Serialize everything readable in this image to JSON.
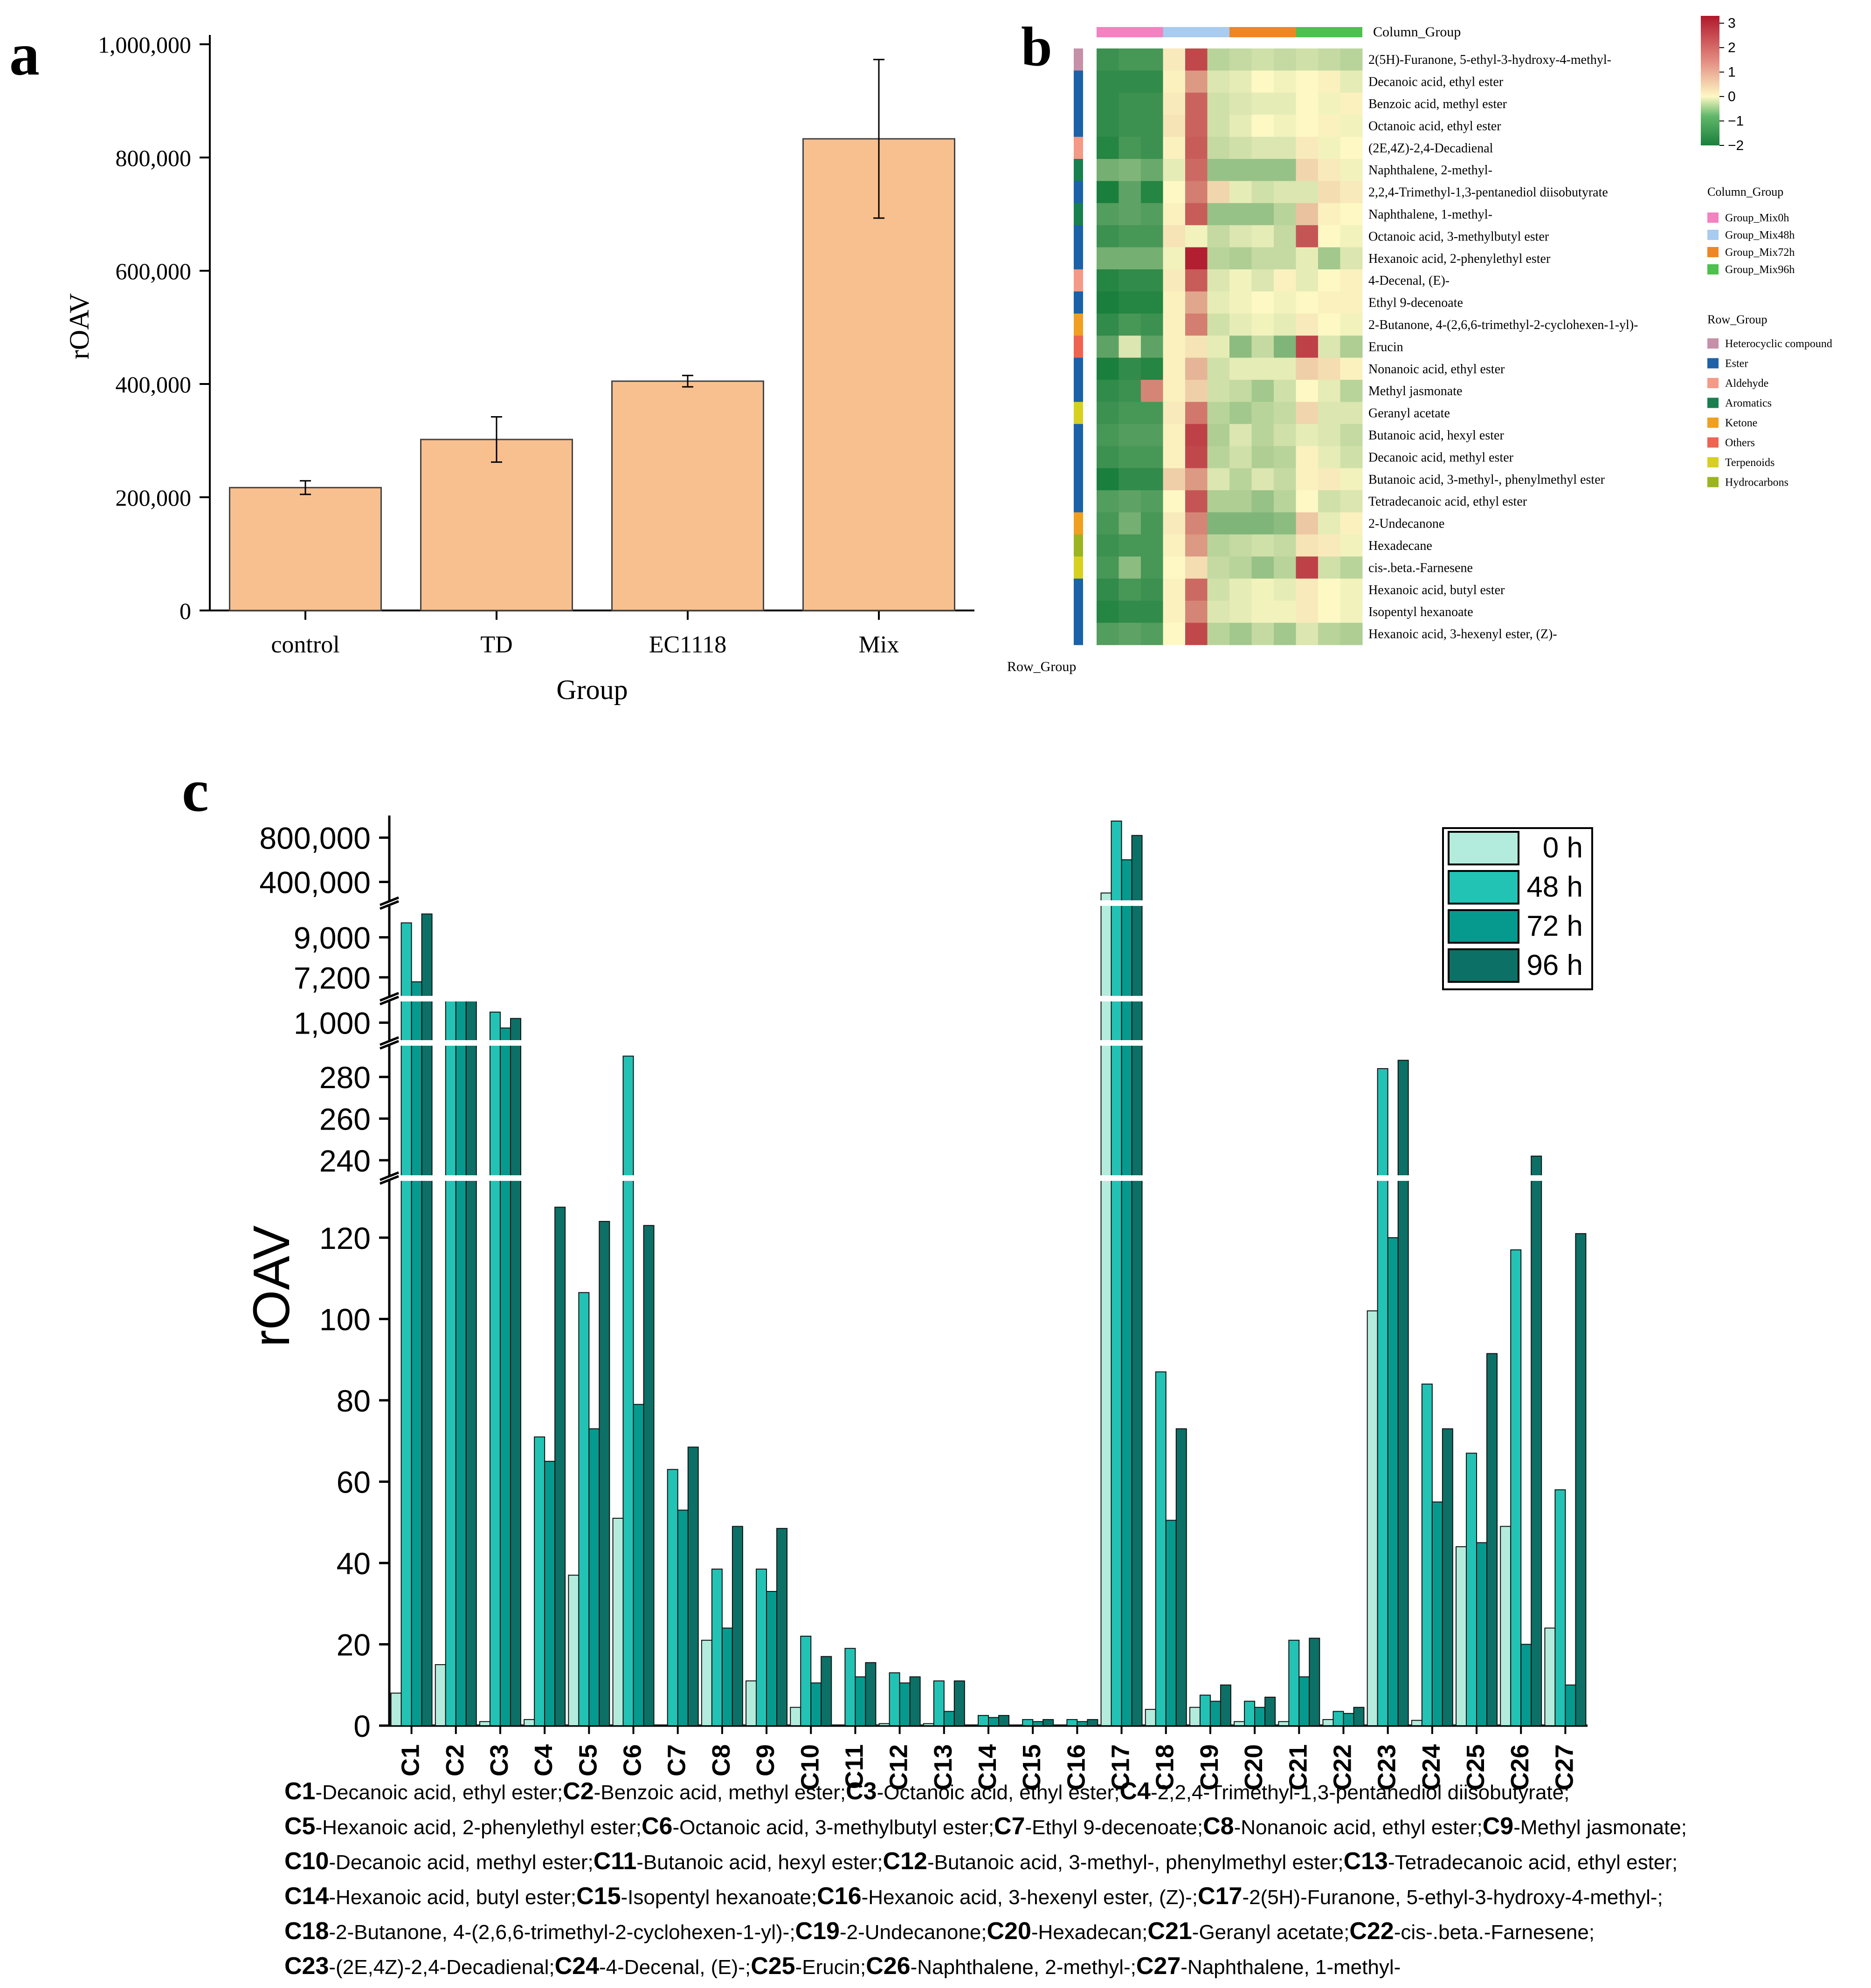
{
  "colors": {
    "bar_a": "#f9c08f",
    "c_0h": "#b3ecdc",
    "c_48h": "#22c3b5",
    "c_72h": "#069a8e",
    "c_96h": "#0c7066",
    "hm_low": "#1a7f3c",
    "hm_mid": "#fdf8c4",
    "hm_high": "#b0182b"
  },
  "chart_data": [
    {
      "panel": "a",
      "type": "bar",
      "xlabel": "Group",
      "ylabel": "rOAV",
      "categories": [
        "control",
        "TD",
        "EC1118",
        "Mix"
      ],
      "values": [
        217000,
        302000,
        405000,
        833000
      ],
      "errors": [
        12000,
        40000,
        10000,
        140000
      ],
      "ylim": [
        0,
        1000000
      ],
      "yticks": [
        0,
        200000,
        400000,
        600000,
        800000,
        1000000
      ],
      "ytick_labels": [
        "0",
        "200,000",
        "400,000",
        "600,000",
        "800,000",
        "1,000,000"
      ]
    },
    {
      "panel": "b",
      "type": "heatmap",
      "column_group_title": "Column_Group",
      "row_group_title": "Row_Group",
      "columns": [
        "Group_Mix0h",
        "Group_Mix0h",
        "Group_Mix0h",
        "Group_Mix48h",
        "Group_Mix48h",
        "Group_Mix48h",
        "Group_Mix72h",
        "Group_Mix72h",
        "Group_Mix72h",
        "Group_Mix96h",
        "Group_Mix96h",
        "Group_Mix96h"
      ],
      "column_groups": [
        {
          "name": "Group_Mix0h",
          "color": "#f282c0"
        },
        {
          "name": "Group_Mix48h",
          "color": "#a8cbf0"
        },
        {
          "name": "Group_Mix72h",
          "color": "#ee8626"
        },
        {
          "name": "Group_Mix96h",
          "color": "#4dc04d"
        }
      ],
      "row_group_legend": [
        {
          "name": "Heterocyclic compound",
          "color": "#c690a8"
        },
        {
          "name": "Ester",
          "color": "#1b62a8"
        },
        {
          "name": "Aldehyde",
          "color": "#f49a86"
        },
        {
          "name": "Aromatics",
          "color": "#17804e"
        },
        {
          "name": "Ketone",
          "color": "#f0a020"
        },
        {
          "name": "Others",
          "color": "#ee6450"
        },
        {
          "name": "Terpenoids",
          "color": "#d8d020"
        },
        {
          "name": "Hydrocarbons",
          "color": "#9cb420"
        }
      ],
      "colorbar_ticks": [
        "3",
        "2",
        "1",
        "0",
        "−1",
        "−2"
      ],
      "colorbar_range": [
        -2,
        3.3
      ],
      "rows": [
        {
          "name": "2(5H)-Furanone, 5-ethyl-3-hydroxy-4-methyl-",
          "group": "Heterocyclic compound",
          "values": [
            -1.7,
            -1.6,
            -1.6,
            0.2,
            2.6,
            -0.6,
            -0.5,
            -0.4,
            -0.5,
            -0.4,
            -0.5,
            -0.6
          ]
        },
        {
          "name": "Decanoic acid, ethyl ester",
          "group": "Ester",
          "values": [
            -1.8,
            -1.8,
            -1.8,
            0.1,
            1.4,
            -0.3,
            -0.2,
            0,
            -0.1,
            0,
            0.1,
            -0.2
          ]
        },
        {
          "name": "Benzoic acid, methyl ester",
          "group": "Ester",
          "values": [
            -1.8,
            -1.7,
            -1.7,
            0.2,
            2.2,
            -0.4,
            -0.3,
            -0.2,
            -0.2,
            0,
            -0.1,
            0.1
          ]
        },
        {
          "name": "Octanoic acid, ethyl ester",
          "group": "Ester",
          "values": [
            -1.8,
            -1.7,
            -1.7,
            0.3,
            2.2,
            -0.4,
            -0.2,
            0,
            -0.1,
            0,
            0.1,
            -0.1
          ]
        },
        {
          "name": "(2E,4Z)-2,4-Decadienal",
          "group": "Aldehyde",
          "values": [
            -1.9,
            -1.6,
            -1.7,
            0.1,
            2.3,
            -0.5,
            -0.4,
            -0.3,
            -0.3,
            0.2,
            -0.1,
            0
          ]
        },
        {
          "name": "Naphthalene, 2-methyl-",
          "group": "Aromatics",
          "values": [
            -1.2,
            -1.1,
            -1.3,
            -0.2,
            2.1,
            -0.9,
            -0.9,
            -0.9,
            -0.9,
            0.5,
            0.2,
            -0.1
          ]
        },
        {
          "name": "2,2,4-Trimethyl-1,3-pentanediol diisobutyrate",
          "group": "Ester",
          "values": [
            -2,
            -1.4,
            -1.9,
            0,
            1.8,
            0.5,
            -0.2,
            -0.4,
            -0.3,
            -0.3,
            0.4,
            0.2
          ]
        },
        {
          "name": "Naphthalene, 1-methyl-",
          "group": "Aromatics",
          "values": [
            -1.5,
            -1.4,
            -1.5,
            0.1,
            2.3,
            -0.9,
            -0.9,
            -0.9,
            -0.6,
            0.8,
            0.1,
            0
          ]
        },
        {
          "name": "Octanoic acid, 3-methylbutyl ester",
          "group": "Ester",
          "values": [
            -1.7,
            -1.6,
            -1.6,
            0.3,
            -0.1,
            -0.5,
            -0.3,
            -0.2,
            -0.5,
            2.4,
            0,
            -0.1
          ]
        },
        {
          "name": "Hexanoic acid, 2-phenylethyl ester",
          "group": "Ester",
          "values": [
            -1.2,
            -1.2,
            -1.2,
            -0.1,
            3.2,
            -0.6,
            -0.7,
            -0.5,
            -0.5,
            -0.2,
            -0.8,
            -0.3
          ]
        },
        {
          "name": "4-Decenal, (E)-",
          "group": "Aldehyde",
          "values": [
            -1.9,
            -1.8,
            -1.8,
            0.2,
            2.3,
            -0.3,
            -0.1,
            -0.3,
            0.1,
            -0.2,
            0,
            0.1
          ]
        },
        {
          "name": "Ethyl 9-decenoate",
          "group": "Ester",
          "values": [
            -2,
            -1.9,
            -1.9,
            0.1,
            1.2,
            -0.2,
            -0.1,
            0,
            -0.1,
            0,
            0.1,
            0.1
          ]
        },
        {
          "name": "2-Butanone, 4-(2,6,6-trimethyl-2-cyclohexen-1-yl)-",
          "group": "Ketone",
          "values": [
            -1.8,
            -1.6,
            -1.7,
            0.1,
            1.8,
            -0.4,
            -0.2,
            -0.1,
            -0.2,
            0.2,
            0,
            -0.1
          ]
        },
        {
          "name": "Erucin",
          "group": "Others",
          "values": [
            -1.4,
            -0.3,
            -1.4,
            0.1,
            0.3,
            -0.2,
            -1,
            -0.5,
            -1.1,
            2.7,
            -0.3,
            -0.7
          ]
        },
        {
          "name": "Nonanoic acid, ethyl ester",
          "group": "Ester",
          "values": [
            -2,
            -1.8,
            -1.9,
            0.1,
            1,
            -0.4,
            -0.2,
            -0.2,
            -0.2,
            0.6,
            0.4,
            0.1
          ]
        },
        {
          "name": "Methyl jasmonate",
          "group": "Ester",
          "values": [
            -1.8,
            -1.7,
            1.7,
            0.1,
            0.6,
            -0.4,
            -0.5,
            -0.8,
            -0.4,
            0,
            -0.2,
            -0.6
          ]
        },
        {
          "name": "Geranyl acetate",
          "group": "Terpenoids",
          "values": [
            -1.7,
            -1.6,
            -1.6,
            0.2,
            1.9,
            -0.6,
            -0.8,
            -0.6,
            -0.5,
            0.5,
            -0.3,
            -0.3
          ]
        },
        {
          "name": "Butanoic acid, hexyl ester",
          "group": "Ester",
          "values": [
            -1.6,
            -1.5,
            -1.5,
            0.1,
            2.7,
            -0.7,
            -0.3,
            -0.6,
            -0.4,
            -0.2,
            -0.3,
            -0.5
          ]
        },
        {
          "name": "Decanoic acid, methyl ester",
          "group": "Ester",
          "values": [
            -1.7,
            -1.6,
            -1.6,
            0.1,
            2.6,
            -0.6,
            -0.4,
            -0.7,
            -0.6,
            0.1,
            -0.2,
            -0.4
          ]
        },
        {
          "name": "Butanoic acid, 3-methyl-, phenylmethyl ester",
          "group": "Ester",
          "values": [
            -2,
            -1.8,
            -1.8,
            0.6,
            1.4,
            -0.3,
            -0.6,
            -0.3,
            -0.5,
            0.1,
            0.2,
            -0.1
          ]
        },
        {
          "name": "Tetradecanoic acid, ethyl ester",
          "group": "Ester",
          "values": [
            -1.5,
            -1.4,
            -1.5,
            0,
            2.4,
            -0.7,
            -0.7,
            -0.9,
            -0.6,
            0,
            -0.4,
            -0.3
          ]
        },
        {
          "name": "2-Undecanone",
          "group": "Ketone",
          "values": [
            -1.6,
            -1.2,
            -1.6,
            0.2,
            1.7,
            -1.1,
            -1.1,
            -1.1,
            -1,
            0.7,
            -0.2,
            0.1
          ]
        },
        {
          "name": "Hexadecane",
          "group": "Hydrocarbons",
          "values": [
            -1.7,
            -1.6,
            -1.6,
            0.1,
            1.4,
            -0.6,
            -0.5,
            -0.4,
            -0.5,
            0.3,
            0.2,
            -0.1
          ]
        },
        {
          "name": "cis-.beta.-Farnesene",
          "group": "Terpenoids",
          "values": [
            -1.6,
            -1,
            -1.6,
            0,
            0.4,
            -0.5,
            -0.6,
            -0.9,
            -0.6,
            2.7,
            -0.4,
            -0.6
          ]
        },
        {
          "name": "Hexanoic acid, butyl ester",
          "group": "Ester",
          "values": [
            -1.8,
            -1.6,
            -1.7,
            0.1,
            2.1,
            -0.4,
            -0.2,
            -0.1,
            -0.2,
            0.2,
            0,
            -0.1
          ]
        },
        {
          "name": "Isopentyl hexanoate",
          "group": "Ester",
          "values": [
            -1.9,
            -1.8,
            -1.8,
            0.1,
            1.7,
            -0.3,
            -0.2,
            -0.1,
            -0.1,
            0.2,
            0,
            -0.1
          ]
        },
        {
          "name": "Hexanoic acid, 3-hexenyl ester, (Z)-",
          "group": "Ester",
          "values": [
            -1.5,
            -1.4,
            -1.5,
            0,
            2.6,
            -0.6,
            -0.8,
            -0.5,
            -0.8,
            -0.3,
            -0.6,
            -0.7
          ]
        }
      ]
    },
    {
      "panel": "c",
      "type": "bar",
      "ylabel": "rOAV",
      "legend": [
        "0 h",
        "48 h",
        "72 h",
        "96 h"
      ],
      "legend_position": "top-right",
      "categories": [
        "C1",
        "C2",
        "C3",
        "C4",
        "C5",
        "C6",
        "C7",
        "C8",
        "C9",
        "C10",
        "C11",
        "C12",
        "C13",
        "C14",
        "C15",
        "C16",
        "C17",
        "C18",
        "C19",
        "C20",
        "C21",
        "C22",
        "C23",
        "C24",
        "C25",
        "C26",
        "C27"
      ],
      "axis_breaks": [
        {
          "range": [
            0,
            135
          ],
          "ticks": [
            0,
            20,
            40,
            60,
            80,
            100,
            120
          ],
          "tick_labels": [
            "0",
            "20",
            "40",
            "60",
            "80",
            "100",
            "120"
          ]
        },
        {
          "range": [
            231,
            297
          ],
          "ticks": [
            240,
            260,
            280
          ],
          "tick_labels": [
            "240",
            "260",
            "280"
          ]
        },
        {
          "range": [
            900,
            1120
          ],
          "ticks": [
            1000
          ],
          "tick_labels": [
            "1,000"
          ]
        },
        {
          "range": [
            6200,
            10600
          ],
          "ticks": [
            7200,
            9000
          ],
          "tick_labels": [
            "7,200",
            "9,000"
          ]
        },
        {
          "range": [
            200000,
            1000000
          ],
          "ticks": [
            400000,
            800000
          ],
          "tick_labels": [
            "400,000",
            "800,000"
          ]
        }
      ],
      "series": [
        {
          "name": "0 h",
          "values": [
            8,
            15,
            1,
            1.5,
            37,
            51,
            0,
            21,
            11,
            4.5,
            0,
            0.5,
            0.5,
            0,
            0,
            0,
            300000,
            4,
            4.5,
            1,
            1,
            1.5,
            102,
            1.3,
            44,
            49,
            24
          ]
        },
        {
          "name": "48 h",
          "values": [
            9650,
            1200,
            1050,
            71,
            106.5,
            290,
            63,
            38.5,
            38.5,
            22,
            19,
            13,
            11,
            2.5,
            1.5,
            1.5,
            950000,
            87,
            7.5,
            6,
            21,
            3.5,
            284,
            84,
            67,
            117,
            58
          ]
        },
        {
          "name": "72 h",
          "values": [
            7000,
            1110,
            975,
            65,
            73,
            79,
            53,
            24,
            33,
            10.5,
            12,
            10.5,
            3.5,
            2,
            1,
            1,
            600000,
            50.5,
            6,
            4.5,
            12,
            3,
            120,
            55,
            45,
            20,
            10
          ]
        },
        {
          "name": "96 h",
          "values": [
            10050,
            1200,
            1020,
            127.5,
            124,
            123,
            68.5,
            49,
            48.5,
            17,
            15.5,
            12,
            11,
            2.5,
            1.5,
            1.5,
            820000,
            73,
            10,
            7,
            21.5,
            4.5,
            288,
            73,
            91.5,
            242,
            121
          ]
        }
      ],
      "compound_legend": [
        {
          "id": "C1",
          "name": "-Decanoic acid, ethyl ester;"
        },
        {
          "id": "C2",
          "name": "-Benzoic acid, methyl ester;"
        },
        {
          "id": "C3",
          "name": "-Octanoic acid, ethyl ester;"
        },
        {
          "id": "C4",
          "name": "-2,2,4-Trimethyl-1,3-pentanediol diisobutyrate;"
        },
        {
          "id": "C5",
          "name": "-Hexanoic acid, 2-phenylethyl ester;"
        },
        {
          "id": "C6",
          "name": "-Octanoic acid, 3-methylbutyl ester;"
        },
        {
          "id": "C7",
          "name": "-Ethyl 9-decenoate;"
        },
        {
          "id": "C8",
          "name": "-Nonanoic acid, ethyl ester;"
        },
        {
          "id": "C9",
          "name": "-Methyl jasmonate;"
        },
        {
          "id": "C10",
          "name": "-Decanoic acid, methyl ester;"
        },
        {
          "id": "C11",
          "name": "-Butanoic acid, hexyl ester;"
        },
        {
          "id": "C12",
          "name": "-Butanoic acid, 3-methyl-, phenylmethyl ester;"
        },
        {
          "id": "C13",
          "name": "-Tetradecanoic acid, ethyl ester;"
        },
        {
          "id": "C14",
          "name": "-Hexanoic acid, butyl ester;"
        },
        {
          "id": "C15",
          "name": "-Isopentyl hexanoate;"
        },
        {
          "id": "C16",
          "name": "-Hexanoic acid, 3-hexenyl ester, (Z)-;"
        },
        {
          "id": "C17",
          "name": "-2(5H)-Furanone, 5-ethyl-3-hydroxy-4-methyl-;"
        },
        {
          "id": "C18",
          "name": "-2-Butanone, 4-(2,6,6-trimethyl-2-cyclohexen-1-yl)-;"
        },
        {
          "id": "C19",
          "name": "-2-Undecanone;"
        },
        {
          "id": "C20",
          "name": "-Hexadecan;"
        },
        {
          "id": "C21",
          "name": "-Geranyl acetate;"
        },
        {
          "id": "C22",
          "name": "-cis-.beta.-Farnesene;"
        },
        {
          "id": "C23",
          "name": "-(2E,4Z)-2,4-Decadienal;"
        },
        {
          "id": "C24",
          "name": "-4-Decenal, (E)-;"
        },
        {
          "id": "C25",
          "name": "-Erucin;"
        },
        {
          "id": "C26",
          "name": "-Naphthalene, 2-methyl-;"
        },
        {
          "id": "C27",
          "name": "-Naphthalene, 1-methyl-"
        }
      ]
    }
  ],
  "panel_labels": {
    "a": "a",
    "b": "b",
    "c": "c"
  }
}
